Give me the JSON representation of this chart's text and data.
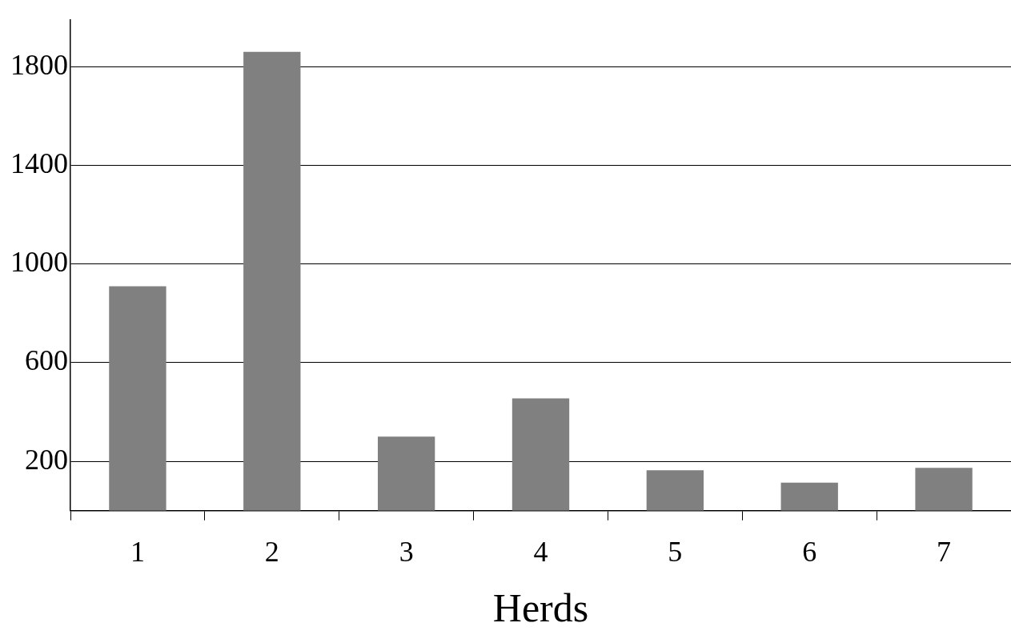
{
  "chart_data": {
    "type": "bar",
    "xlabel": "Herds",
    "categories": [
      "1",
      "2",
      "3",
      "4",
      "5",
      "6",
      "7"
    ],
    "values": [
      910,
      1860,
      300,
      455,
      164,
      114,
      174
    ],
    "color": "#808080",
    "ylim": [
      0,
      1990
    ],
    "yticks": [
      200,
      600,
      1000,
      1400,
      1800
    ],
    "grid": "y",
    "legend": false
  }
}
